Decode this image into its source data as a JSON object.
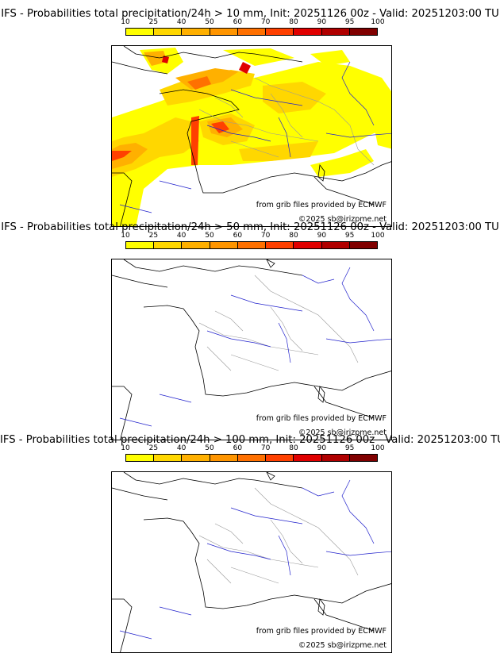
{
  "legend": {
    "ticks": [
      "10",
      "25",
      "40",
      "50",
      "60",
      "70",
      "80",
      "90",
      "95",
      "100"
    ],
    "colors": [
      "#ffff00",
      "#ffd700",
      "#ffb000",
      "#ff9500",
      "#ff7000",
      "#ff4000",
      "#e00000",
      "#b00000",
      "#800000",
      "#500000"
    ]
  },
  "colors": {
    "rivers": "#2222cc",
    "borders": "#999999",
    "coast": "#000000"
  },
  "panels": [
    {
      "title": "IFS - Probabilities total precipitation/24h > 10 mm, Init: 20251126 00z - Valid: 20251203:00 TU",
      "credit_source": "from grib files provided by ECMWF",
      "credit_copyright": "©2025 sb@irizpme.net",
      "has_precip": true
    },
    {
      "title": "IFS - Probabilities total precipitation/24h > 50 mm, Init: 20251126 00z - Valid: 20251203:00 TU",
      "credit_source": "from grib files provided by ECMWF",
      "credit_copyright": "©2025 sb@irizpme.net",
      "has_precip": false
    },
    {
      "title": "IFS - Probabilities total precipitation/24h > 100 mm, Init: 20251126 00z - Valid: 20251203:00 TU",
      "credit_source": "from grib files provided by ECMWF",
      "credit_copyright": "©2025 sb@irizpme.net",
      "has_precip": false
    }
  ]
}
